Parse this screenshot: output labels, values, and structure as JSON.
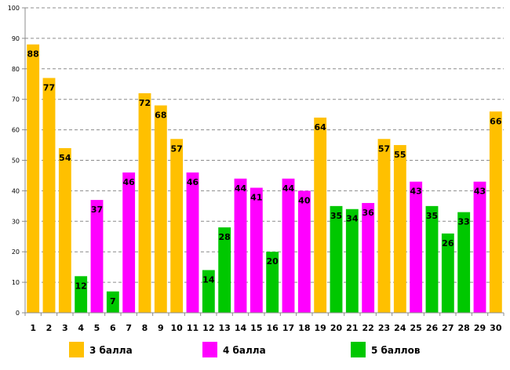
{
  "chart_data": {
    "type": "bar",
    "title": "",
    "xlabel": "",
    "ylabel": "",
    "ylim": [
      0,
      100
    ],
    "yticks": [
      0,
      10,
      20,
      30,
      40,
      50,
      60,
      70,
      80,
      90,
      100
    ],
    "grid": true,
    "legend_position": "bottom",
    "categories": [
      "1",
      "2",
      "3",
      "4",
      "5",
      "6",
      "7",
      "8",
      "9",
      "10",
      "11",
      "12",
      "13",
      "14",
      "15",
      "16",
      "17",
      "18",
      "19",
      "20",
      "21",
      "22",
      "23",
      "24",
      "25",
      "26",
      "27",
      "28",
      "29",
      "30"
    ],
    "values": [
      88,
      77,
      54,
      12,
      37,
      7,
      46,
      72,
      68,
      57,
      46,
      14,
      28,
      44,
      41,
      20,
      44,
      40,
      64,
      35,
      34,
      36,
      57,
      55,
      43,
      35,
      26,
      33,
      43,
      66
    ],
    "groups": [
      "3",
      "3",
      "3",
      "5",
      "4",
      "5",
      "4",
      "3",
      "3",
      "3",
      "4",
      "5",
      "5",
      "4",
      "4",
      "5",
      "4",
      "4",
      "3",
      "5",
      "5",
      "4",
      "3",
      "3",
      "4",
      "5",
      "5",
      "5",
      "4",
      "3"
    ],
    "series": [
      {
        "key": "3",
        "name": "3 балла",
        "color": "#FFC000"
      },
      {
        "key": "4",
        "name": "4 балла",
        "color": "#FF00FF"
      },
      {
        "key": "5",
        "name": "5 баллов",
        "color": "#00C800"
      }
    ]
  }
}
